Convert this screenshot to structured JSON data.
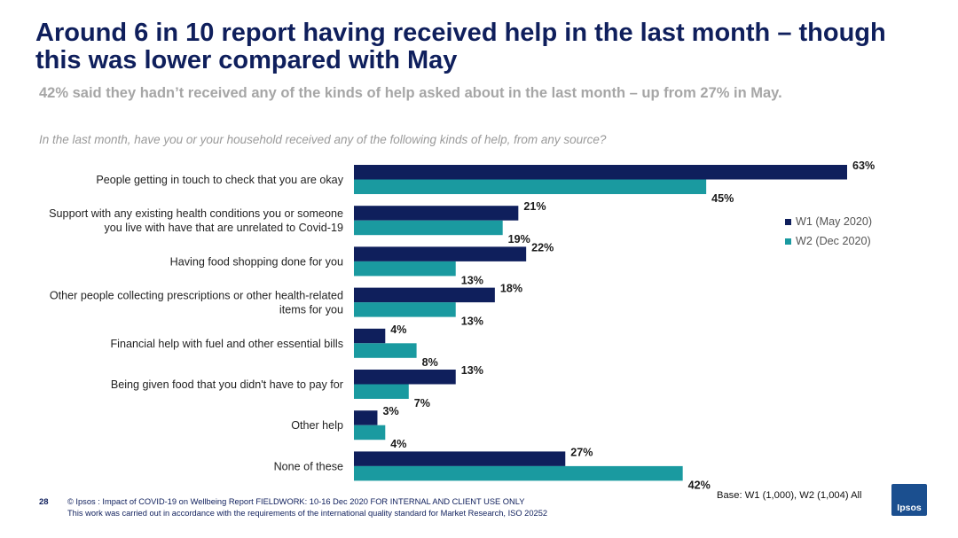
{
  "header": {
    "title": "Around 6 in 10 report having received help in the last month – though this was lower compared with May",
    "subtitle": "42% said they hadn’t received any of the kinds of help asked about in the last month – up from 27% in May.",
    "question": "In the last month, have you or your household received any of the following kinds of help, from any source?"
  },
  "chart_data": {
    "type": "bar",
    "orientation": "horizontal",
    "categories": [
      [
        "People getting in touch to check that you are okay"
      ],
      [
        "Support with any existing health conditions you or someone",
        "you live with have that are unrelated to Covid-19"
      ],
      [
        "Having food shopping done for you"
      ],
      [
        "Other people collecting prescriptions or other health-related",
        "items for you"
      ],
      [
        "Financial help with fuel and other essential bills"
      ],
      [
        "Being given food that you didn't have to pay for"
      ],
      [
        "Other help"
      ],
      [
        "None of these"
      ]
    ],
    "series": [
      {
        "name": "W1 (May 2020)",
        "color": "#0f1f5c",
        "values": [
          63,
          21,
          22,
          18,
          4,
          13,
          3,
          27
        ]
      },
      {
        "name": "W2 (Dec 2020)",
        "color": "#1a9aa0",
        "values": [
          45,
          19,
          13,
          13,
          8,
          7,
          4,
          42
        ]
      }
    ],
    "value_suffix": "%",
    "legend_position": "right",
    "grid": false
  },
  "footer": {
    "page_number": "28",
    "line1": "© Ipsos : Impact of COVID-19 on Wellbeing Report FIELDWORK: 10-16 Dec 2020 FOR INTERNAL AND CLIENT USE ONLY",
    "line2": "This work was carried out in accordance with the requirements of the international quality standard for Market Research, ISO 20252",
    "base": "Base: W1 (1,000), W2 (1,004) All",
    "logo_text": "Ipsos"
  }
}
